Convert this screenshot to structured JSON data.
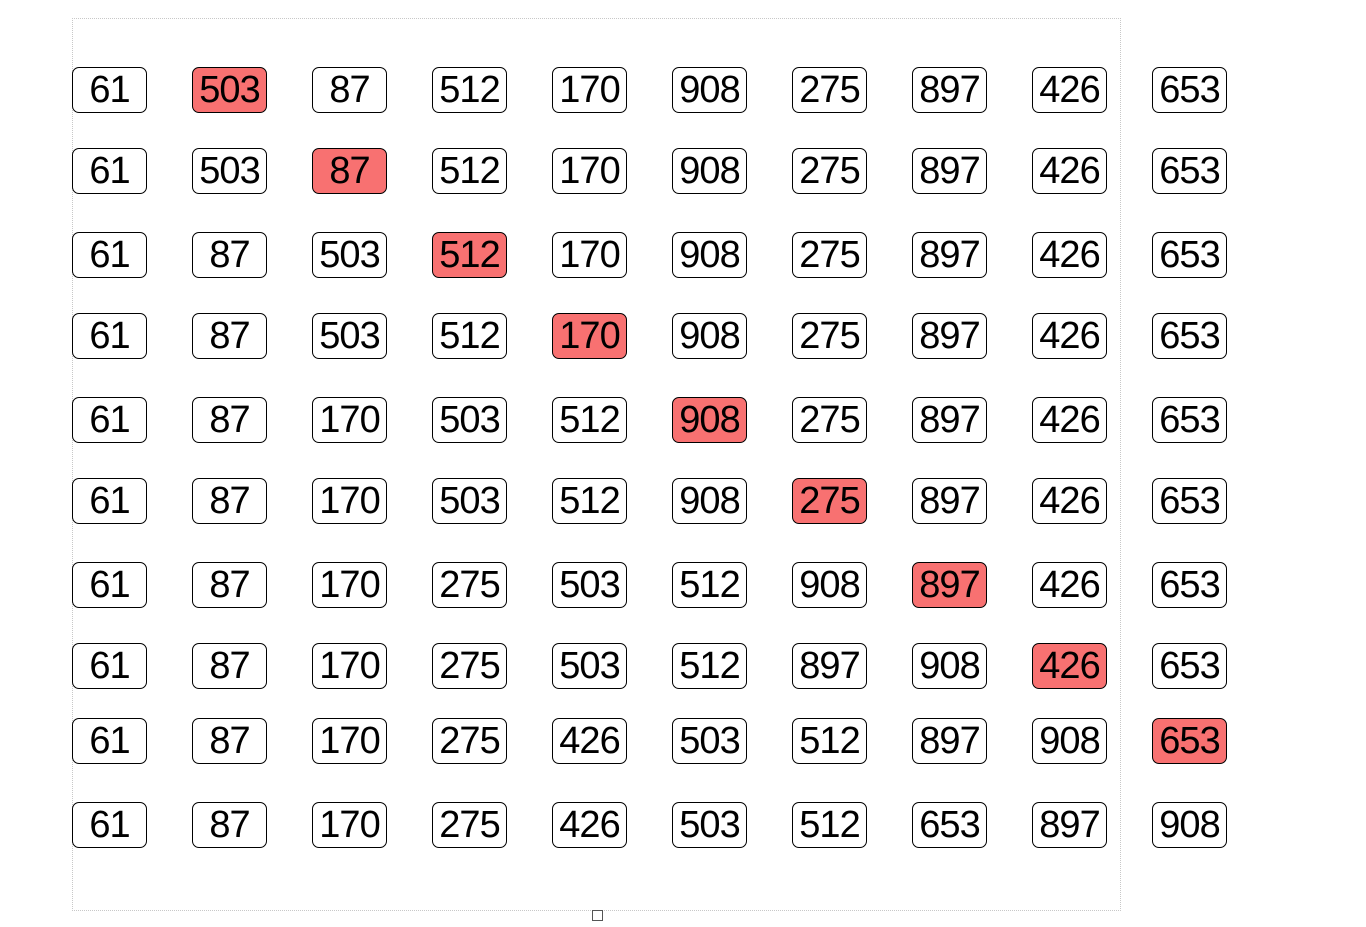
{
  "highlight_color": "#f87171",
  "steps": [
    {
      "values": [
        "61",
        "503",
        "87",
        "512",
        "170",
        "908",
        "275",
        "897",
        "426",
        "653"
      ],
      "highlight": 1
    },
    {
      "values": [
        "61",
        "503",
        "87",
        "512",
        "170",
        "908",
        "275",
        "897",
        "426",
        "653"
      ],
      "highlight": 2
    },
    {
      "values": [
        "61",
        "87",
        "503",
        "512",
        "170",
        "908",
        "275",
        "897",
        "426",
        "653"
      ],
      "highlight": 3
    },
    {
      "values": [
        "61",
        "87",
        "503",
        "512",
        "170",
        "908",
        "275",
        "897",
        "426",
        "653"
      ],
      "highlight": 4
    },
    {
      "values": [
        "61",
        "87",
        "170",
        "503",
        "512",
        "908",
        "275",
        "897",
        "426",
        "653"
      ],
      "highlight": 5
    },
    {
      "values": [
        "61",
        "87",
        "170",
        "503",
        "512",
        "908",
        "275",
        "897",
        "426",
        "653"
      ],
      "highlight": 6
    },
    {
      "values": [
        "61",
        "87",
        "170",
        "275",
        "503",
        "512",
        "908",
        "897",
        "426",
        "653"
      ],
      "highlight": 7
    },
    {
      "values": [
        "61",
        "87",
        "170",
        "275",
        "503",
        "512",
        "897",
        "908",
        "426",
        "653"
      ],
      "highlight": 8
    },
    {
      "values": [
        "61",
        "87",
        "170",
        "275",
        "426",
        "503",
        "512",
        "897",
        "908",
        "653"
      ],
      "highlight": 9
    },
    {
      "values": [
        "61",
        "87",
        "170",
        "275",
        "426",
        "503",
        "512",
        "653",
        "897",
        "908"
      ],
      "highlight": -1
    }
  ]
}
